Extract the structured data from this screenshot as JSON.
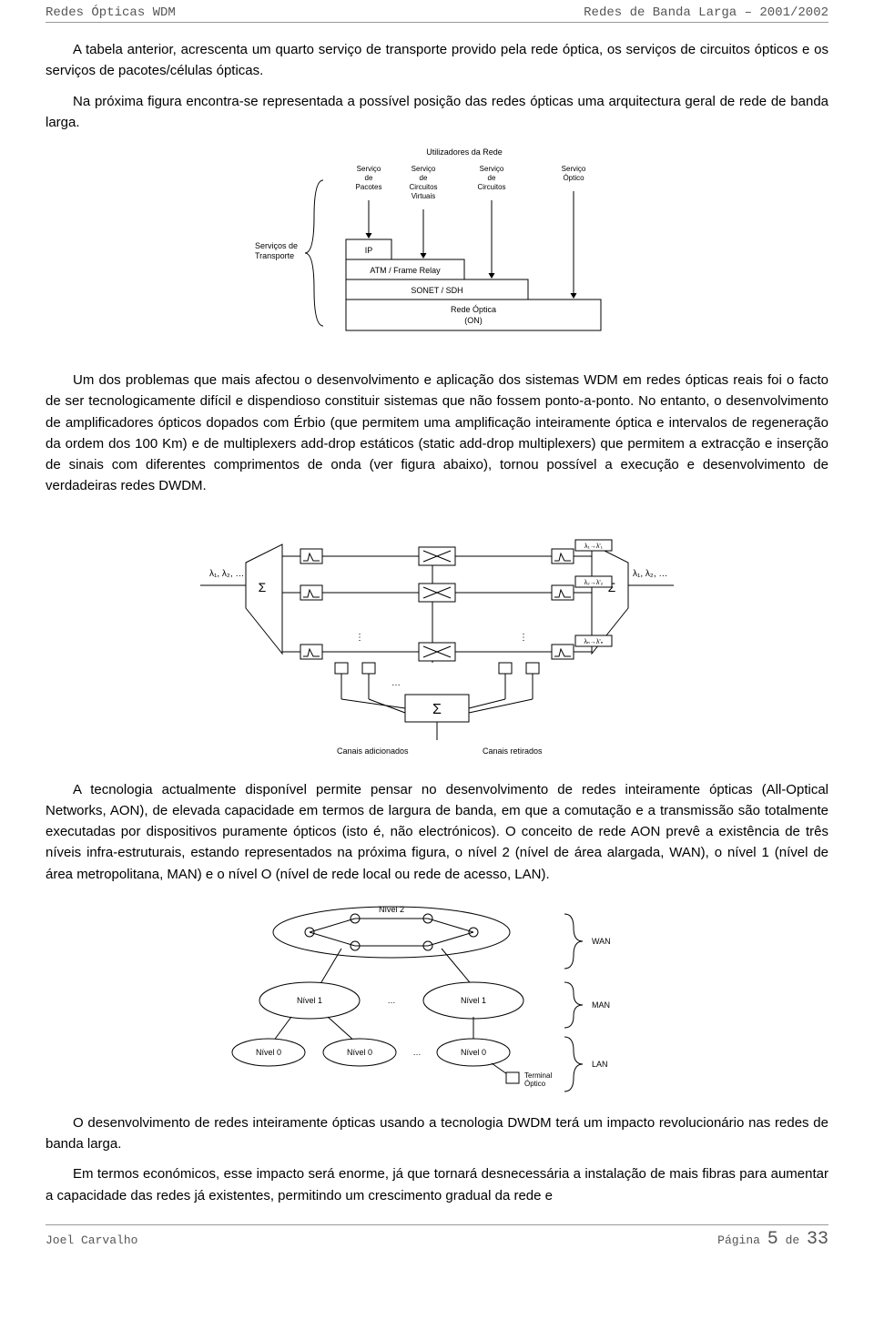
{
  "header": {
    "left": "Redes Ópticas WDM",
    "right": "Redes de Banda Larga – 2001/2002"
  },
  "para1": "A tabela anterior, acrescenta um quarto serviço de transporte provido pela rede óptica, os serviços de circuitos ópticos e os serviços de pacotes/células ópticas.",
  "para2": "Na próxima figura encontra-se representada a possível posição das redes ópticas uma arquitectura geral de rede de banda larga.",
  "fig1": {
    "top_label": "Utilizadores da Rede",
    "left_label": "Serviços de\nTransporte",
    "cols": [
      "Serviço\nde\nPacotes",
      "Serviço\nde\nCircuitos\nVirtuais",
      "Serviço\nde\nCircuitos",
      "Serviço\nÓptico"
    ],
    "layers": [
      "IP",
      "ATM / Frame Relay",
      "SONET / SDH",
      "Rede Óptica\n(ON)"
    ]
  },
  "para3": "Um dos problemas que mais afectou o desenvolvimento e aplicação dos sistemas WDM em redes ópticas reais foi o facto de ser tecnologicamente difícil e dispendioso constituir sistemas que não fossem ponto-a-ponto. No entanto, o desenvolvimento de amplificadores ópticos dopados com Érbio (que permitem uma amplificação inteiramente óptica e intervalos de regeneração da ordem dos 100 Km) e de multiplexers add-drop estáticos (static add-drop multiplexers) que permitem a extracção e inserção de sinais com diferentes comprimentos de onda (ver figura abaixo), tornou possível a execução e desenvolvimento de verdadeiras redes DWDM.",
  "fig2": {
    "in_label": "λ₁, λ₂, …",
    "out_label": "λ₁, λ₂, …",
    "row_labels": [
      "λ₁→λ'₁",
      "λ₂→λ'₂",
      "λₙ→λ'ₙ"
    ],
    "add_label": "Canais adicionados",
    "drop_label": "Canais retirados"
  },
  "para4": "A tecnologia actualmente disponível permite pensar no desenvolvimento de redes inteiramente ópticas (All-Optical Networks, AON), de elevada capacidade em termos de largura de banda, em que a comutação e a transmissão são totalmente executadas por dispositivos puramente ópticos (isto é, não electrónicos). O conceito de rede AON prevê a existência de três níveis infra-estruturais, estando representados na próxima figura, o nível 2 (nível de área alargada, WAN), o nível 1 (nível de área metropolitana, MAN) e o nível O (nível de rede local ou rede de acesso, LAN).",
  "fig3": {
    "levels": [
      "Nível 2",
      "Nível 1",
      "Nível 1",
      "Nível 0",
      "Nível 0",
      "Nível 0"
    ],
    "right_labels": [
      "WAN",
      "MAN",
      "LAN"
    ],
    "terminal": "Terminal\nÓptico"
  },
  "para5": "O desenvolvimento de redes inteiramente ópticas usando a tecnologia DWDM terá um impacto revolucionário nas redes de banda larga.",
  "para6": "Em termos económicos, esse impacto será enorme, já que tornará desnecessária a instalação de mais fibras para aumentar a capacidade das redes já existentes, permitindo um crescimento gradual da rede e",
  "footer": {
    "left": "Joel Carvalho",
    "right_prefix": "Página ",
    "page_current": "5",
    "page_sep": " de ",
    "page_total": "33"
  },
  "colors": {
    "text": "#000000",
    "muted": "#555555",
    "rule": "#999999",
    "diagram_stroke": "#000000",
    "diagram_fill": "#ffffff"
  }
}
